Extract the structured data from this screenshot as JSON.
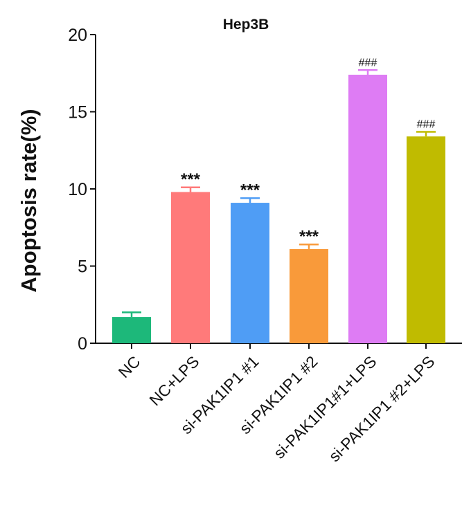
{
  "chart_data": {
    "type": "bar",
    "title": "Hep3B",
    "ylabel": "Apoptosis rate(%)",
    "xlabel": "",
    "ylim": [
      0,
      20
    ],
    "yticks": [
      0,
      5,
      10,
      15,
      20
    ],
    "categories": [
      "NC",
      "NC+LPS",
      "si-PAK1IP1 #1",
      "si-PAK1IP1 #2",
      "si-PAK1IP1#1+LPS",
      "si-PAK1IP1 #2+LPS"
    ],
    "values": [
      1.7,
      9.8,
      9.1,
      6.1,
      17.4,
      13.4
    ],
    "errors": [
      0.3,
      0.3,
      0.3,
      0.3,
      0.3,
      0.3
    ],
    "significance": [
      "",
      "***",
      "***",
      "***",
      "###",
      "###"
    ],
    "colors": [
      "#1db87a",
      "#ff7a7a",
      "#4f9df5",
      "#f99a3a",
      "#de7cf4",
      "#c0bb00"
    ],
    "grid": false,
    "legend": "none"
  }
}
